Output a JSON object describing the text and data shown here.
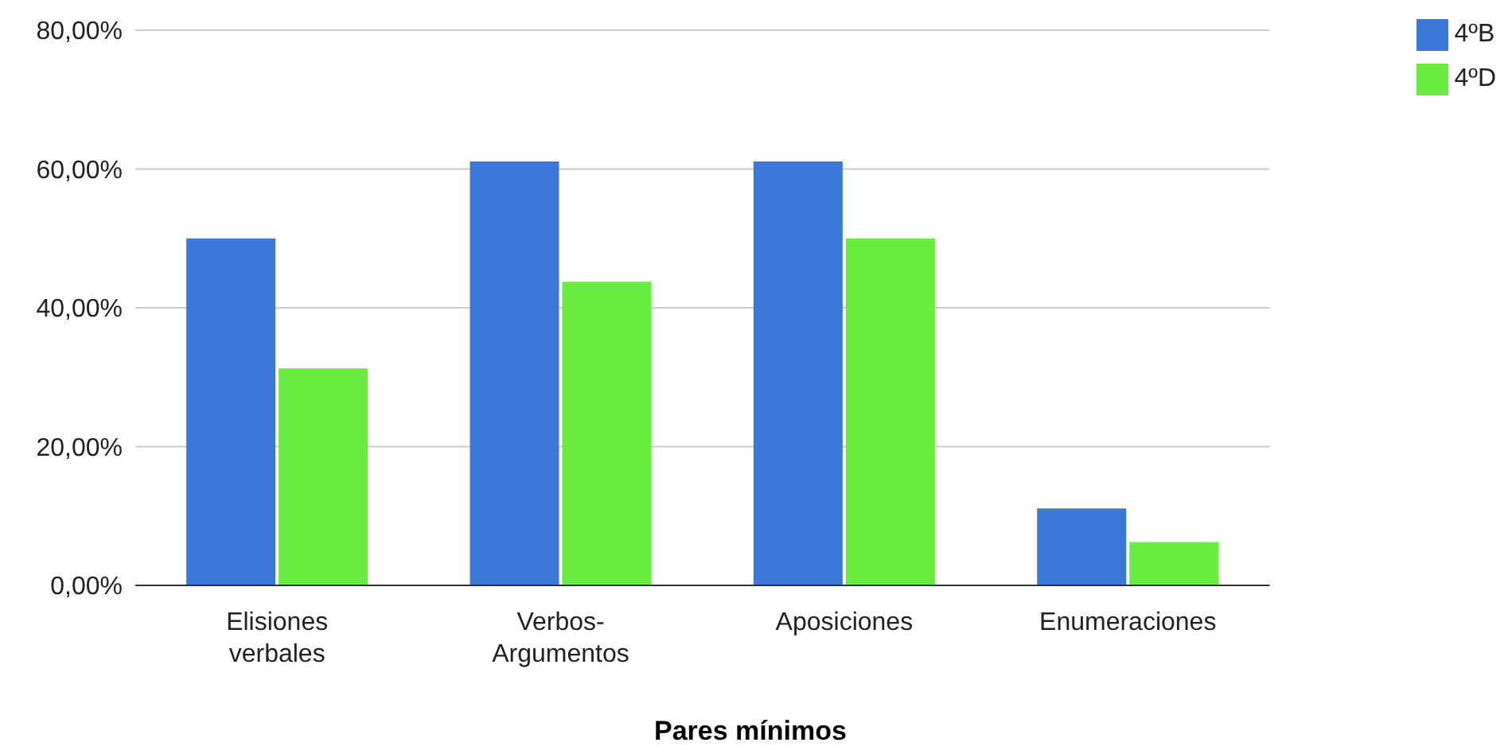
{
  "chart_data": {
    "type": "bar",
    "xlabel": "Pares mínimos",
    "categories": [
      "Elisiones verbales",
      "Verbos-Argumentos",
      "Aposiciones",
      "Enumeraciones"
    ],
    "series": [
      {
        "name": "4ºB",
        "color": "#3c78d8",
        "values": [
          50,
          61.1,
          61.1,
          11.1
        ]
      },
      {
        "name": "4ºD",
        "color": "#6aeb3f",
        "values": [
          31.25,
          43.75,
          50,
          6.25
        ]
      }
    ],
    "ylim": [
      0,
      80
    ],
    "yticks": [
      {
        "value": 0,
        "label": "0,00%"
      },
      {
        "value": 20,
        "label": "20,00%"
      },
      {
        "value": 40,
        "label": "40,00%"
      },
      {
        "value": 60,
        "label": "60,00%"
      },
      {
        "value": 80,
        "label": "80,00%"
      }
    ],
    "grid": "y",
    "legend": "top right"
  }
}
